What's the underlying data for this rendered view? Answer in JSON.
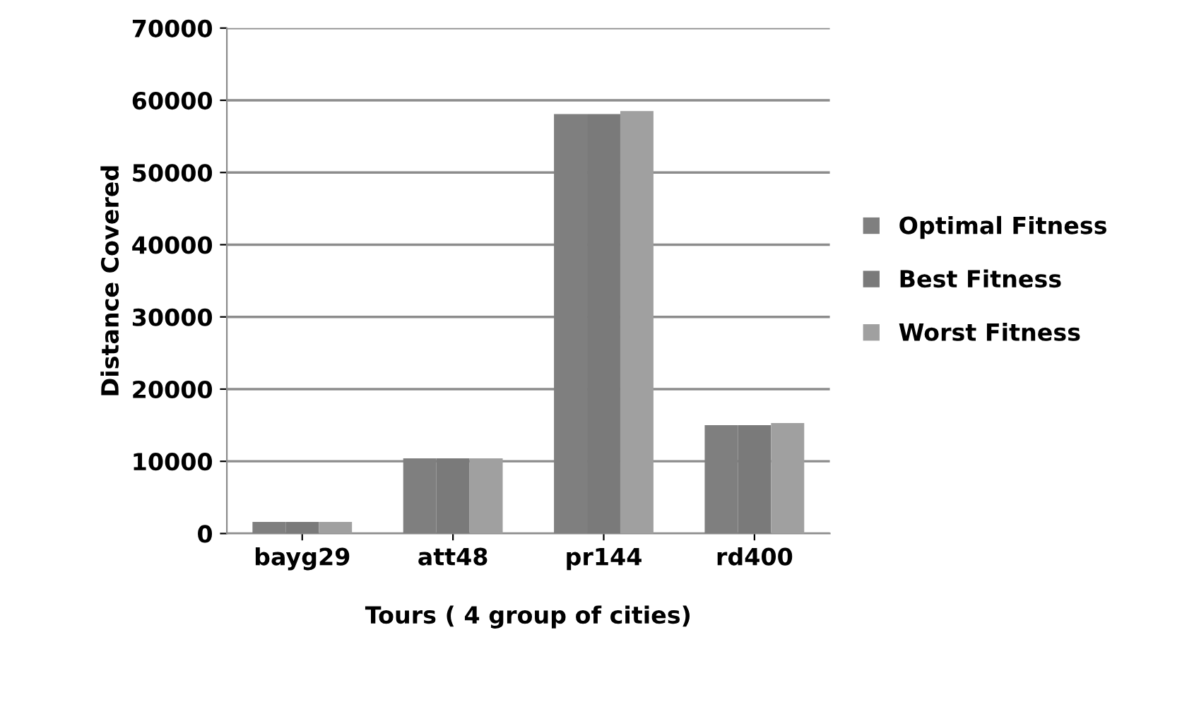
{
  "chart_data": {
    "type": "bar",
    "xlabel": "Tours ( 4 group of cities)",
    "ylabel": "Distance Covered",
    "categories": [
      "bayg29",
      "att48",
      "pr144",
      "rd400"
    ],
    "series": [
      {
        "name": "Optimal Fitness",
        "color": "#7f7f7f",
        "values": [
          1600,
          10400,
          58100,
          15000
        ]
      },
      {
        "name": "Best Fitness",
        "color": "#7a7a7a",
        "values": [
          1600,
          10400,
          58100,
          15000
        ]
      },
      {
        "name": "Worst Fitness",
        "color": "#a0a0a0",
        "values": [
          1600,
          10400,
          58500,
          15300
        ]
      }
    ],
    "ylim": [
      0,
      70000
    ],
    "yticks": [
      0,
      10000,
      20000,
      30000,
      40000,
      50000,
      60000,
      70000
    ],
    "grid": "y",
    "legend": "right"
  }
}
